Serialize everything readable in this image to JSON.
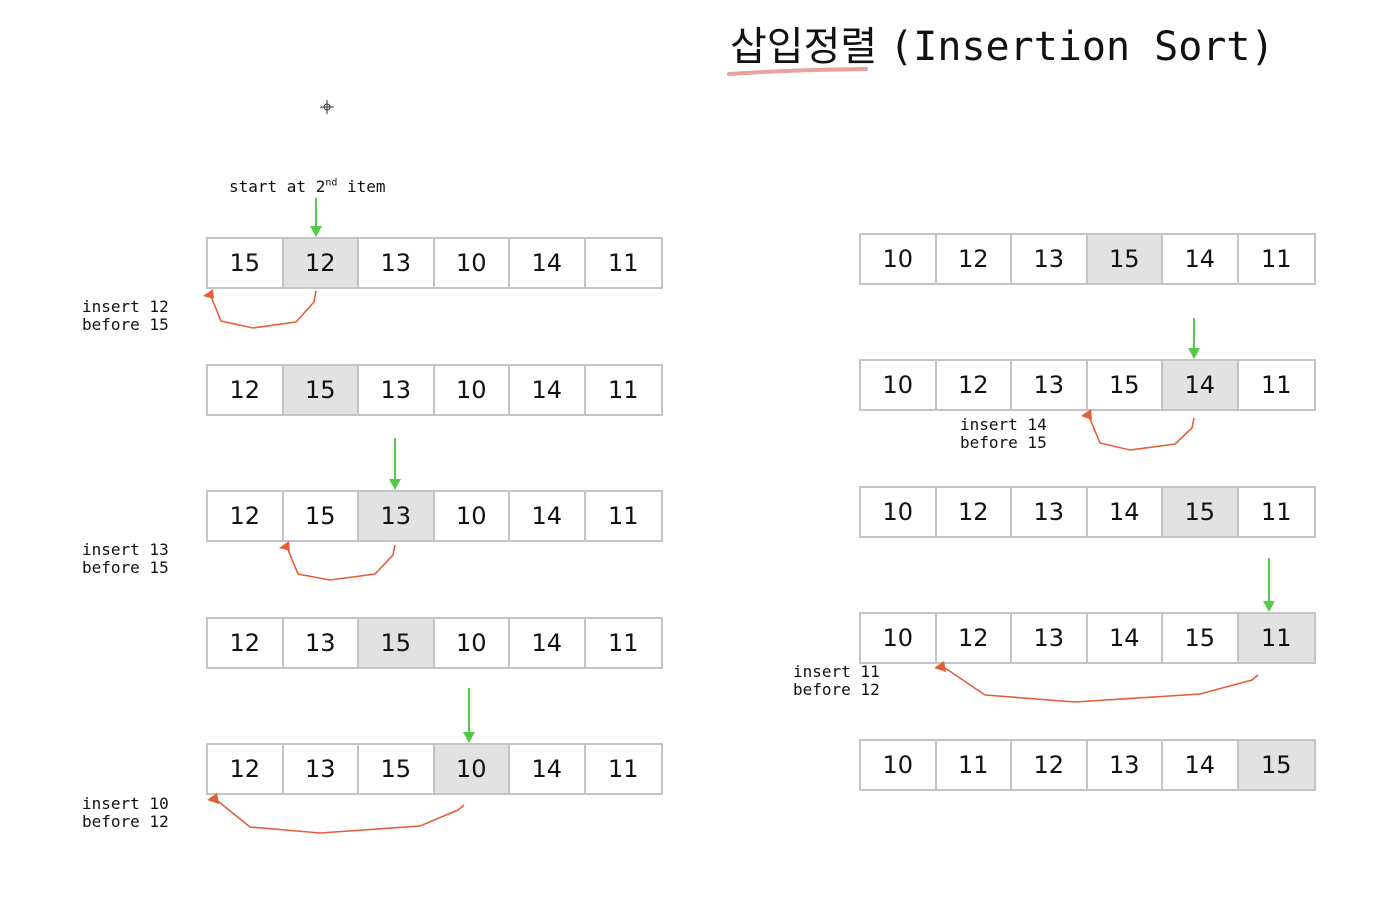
{
  "title": {
    "korean": "삽입정렬",
    "english": "(Insertion Sort)"
  },
  "start_note": {
    "prefix": "start at 2",
    "sup": "nd",
    "suffix": " item"
  },
  "left_rows": [
    {
      "values": [
        "15",
        "12",
        "13",
        "10",
        "14",
        "11"
      ],
      "highlight": 1
    },
    {
      "values": [
        "12",
        "15",
        "13",
        "10",
        "14",
        "11"
      ],
      "highlight": 1
    },
    {
      "values": [
        "12",
        "15",
        "13",
        "10",
        "14",
        "11"
      ],
      "highlight": 2
    },
    {
      "values": [
        "12",
        "13",
        "15",
        "10",
        "14",
        "11"
      ],
      "highlight": 2
    },
    {
      "values": [
        "12",
        "13",
        "15",
        "10",
        "14",
        "11"
      ],
      "highlight": 3
    }
  ],
  "right_rows": [
    {
      "values": [
        "10",
        "12",
        "13",
        "15",
        "14",
        "11"
      ],
      "highlight": 3
    },
    {
      "values": [
        "10",
        "12",
        "13",
        "15",
        "14",
        "11"
      ],
      "highlight": 4
    },
    {
      "values": [
        "10",
        "12",
        "13",
        "14",
        "15",
        "11"
      ],
      "highlight": 4
    },
    {
      "values": [
        "10",
        "12",
        "13",
        "14",
        "15",
        "11"
      ],
      "highlight": 5
    },
    {
      "values": [
        "10",
        "11",
        "12",
        "13",
        "14",
        "15"
      ],
      "highlight": 5
    }
  ],
  "notes": {
    "n1": {
      "line1": "insert 12",
      "line2": "before 15"
    },
    "n2": {
      "line1": "insert 13",
      "line2": "before 15"
    },
    "n3": {
      "line1": "insert 10",
      "line2": "before 12"
    },
    "n4": {
      "line1": "insert 14",
      "line2": "before 15"
    },
    "n5": {
      "line1": "insert 11",
      "line2": "before 12"
    }
  },
  "colors": {
    "highlight": "#e2e2e2",
    "border": "#c4c4c4",
    "green_arrow": "#55c94a",
    "red_arrow": "#e35f3a",
    "title_underline": "#e8a0a0"
  }
}
